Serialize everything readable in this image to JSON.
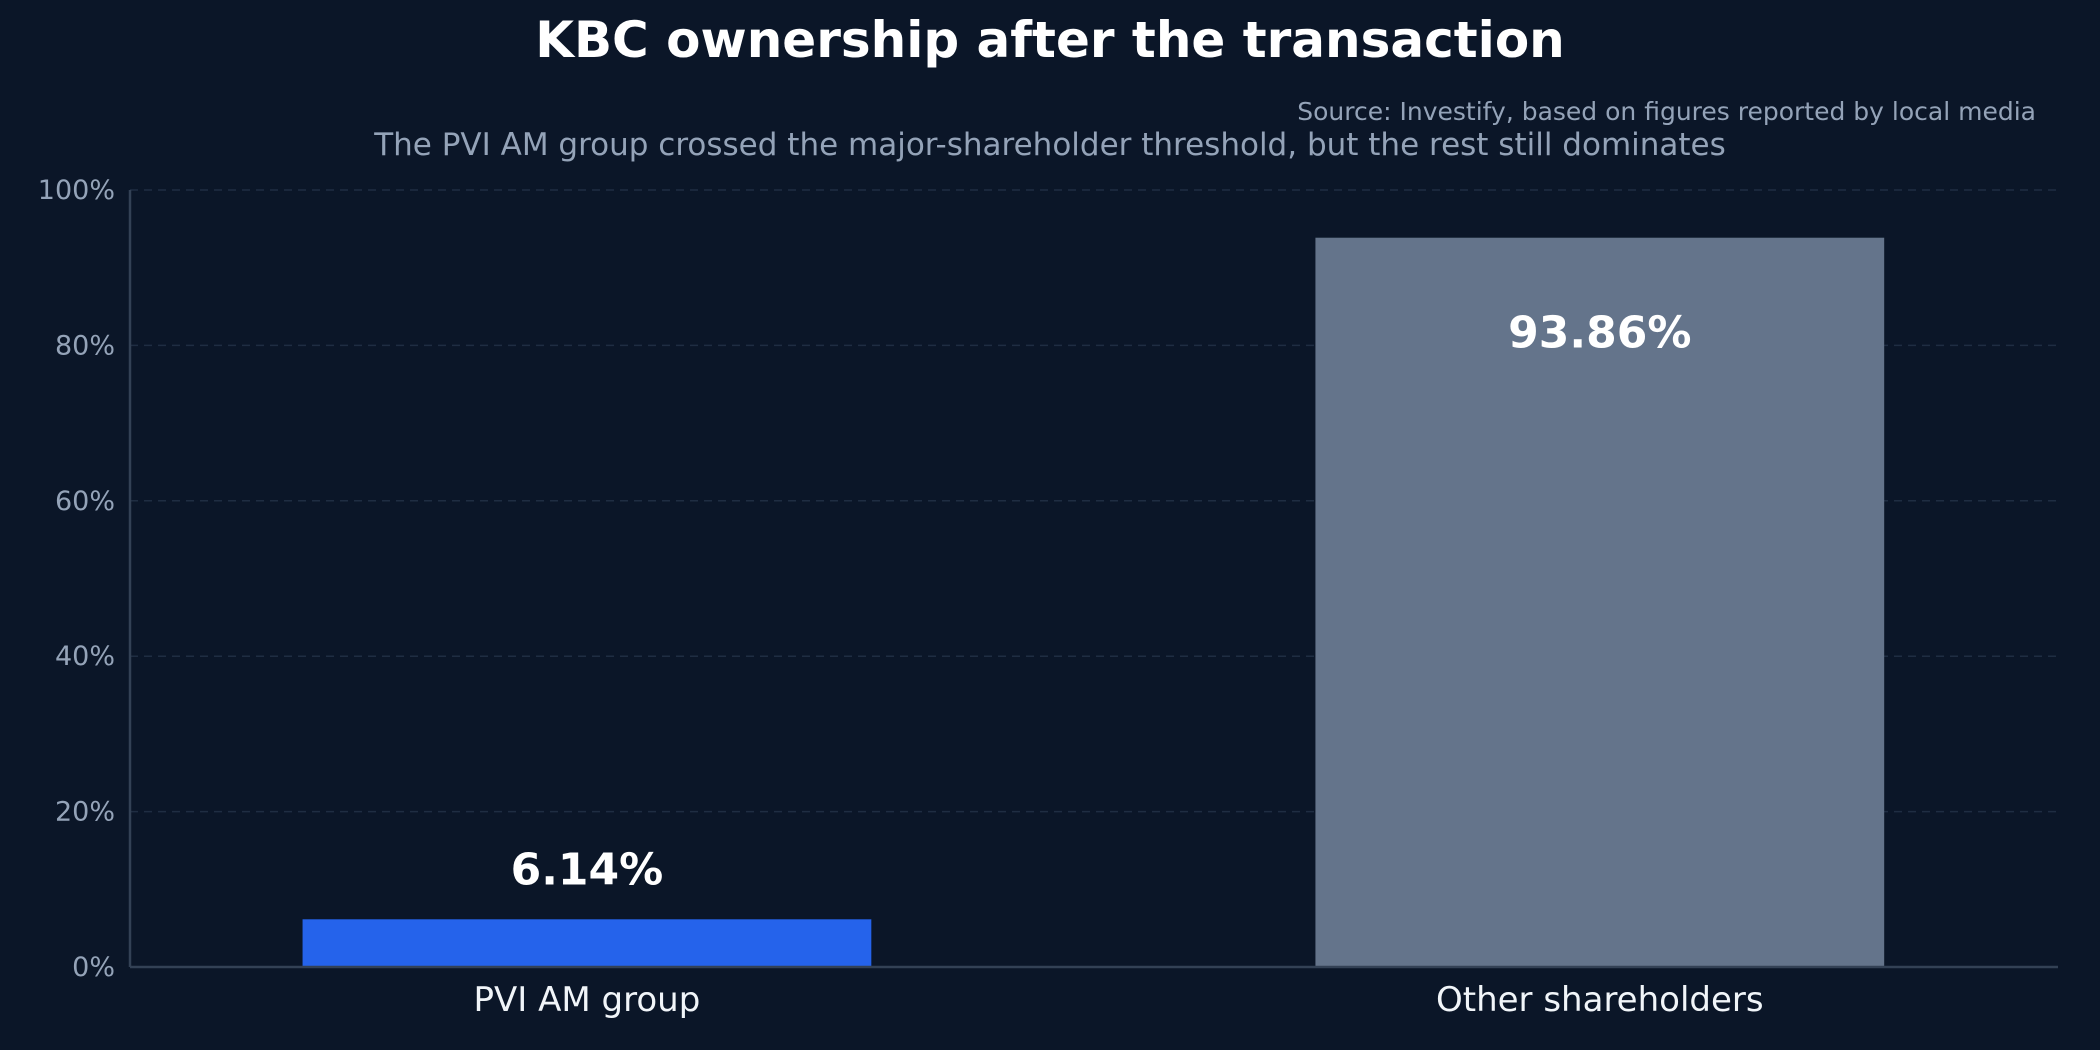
{
  "chart_data": {
    "type": "bar",
    "title": "KBC ownership after the transaction",
    "subtitle": "The PVI AM group crossed the major-shareholder threshold, but the rest still dominates",
    "source": "Source: Investify, based on figures reported by local media",
    "categories": [
      "PVI AM group",
      "Other shareholders"
    ],
    "values": [
      6.14,
      93.86
    ],
    "value_labels": [
      "6.14%",
      "93.86%"
    ],
    "colors": [
      "#2563eb",
      "#64748b"
    ],
    "xlabel": "",
    "ylabel": "",
    "ylim": [
      0,
      100
    ],
    "yticks": [
      0,
      20,
      40,
      60,
      80,
      100
    ],
    "ytick_labels": [
      "0%",
      "20%",
      "40%",
      "60%",
      "80%",
      "100%"
    ],
    "grid": true,
    "legend": "none"
  }
}
